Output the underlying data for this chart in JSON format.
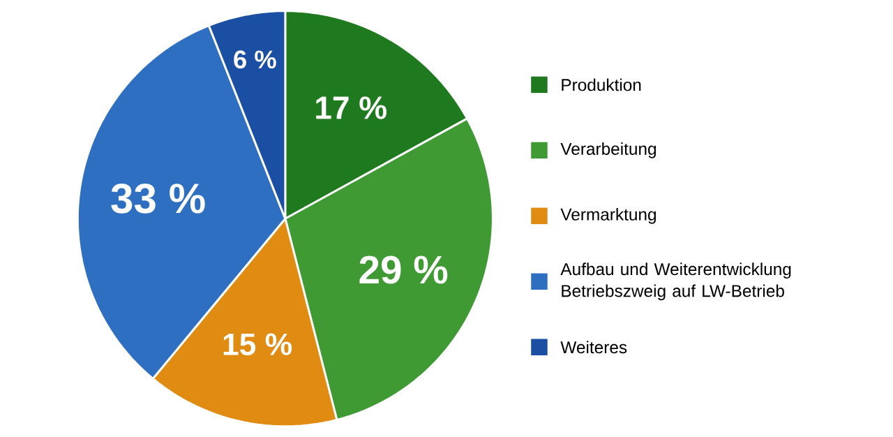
{
  "chart_data": {
    "type": "pie",
    "categories": [
      "Produktion",
      "Verarbeitung",
      "Vermarktung",
      "Aufbau und Weiterentwicklung Betriebszweig auf LW-Betrieb",
      "Weiteres"
    ],
    "values": [
      17,
      29,
      15,
      33,
      6
    ],
    "value_labels": [
      "17 %",
      "29 %",
      "15 %",
      "33 %",
      "6 %"
    ],
    "colors": [
      "#1f7a1f",
      "#3f9a34",
      "#e08c12",
      "#2f6fc2",
      "#1b4fa3"
    ],
    "legend": "right"
  }
}
